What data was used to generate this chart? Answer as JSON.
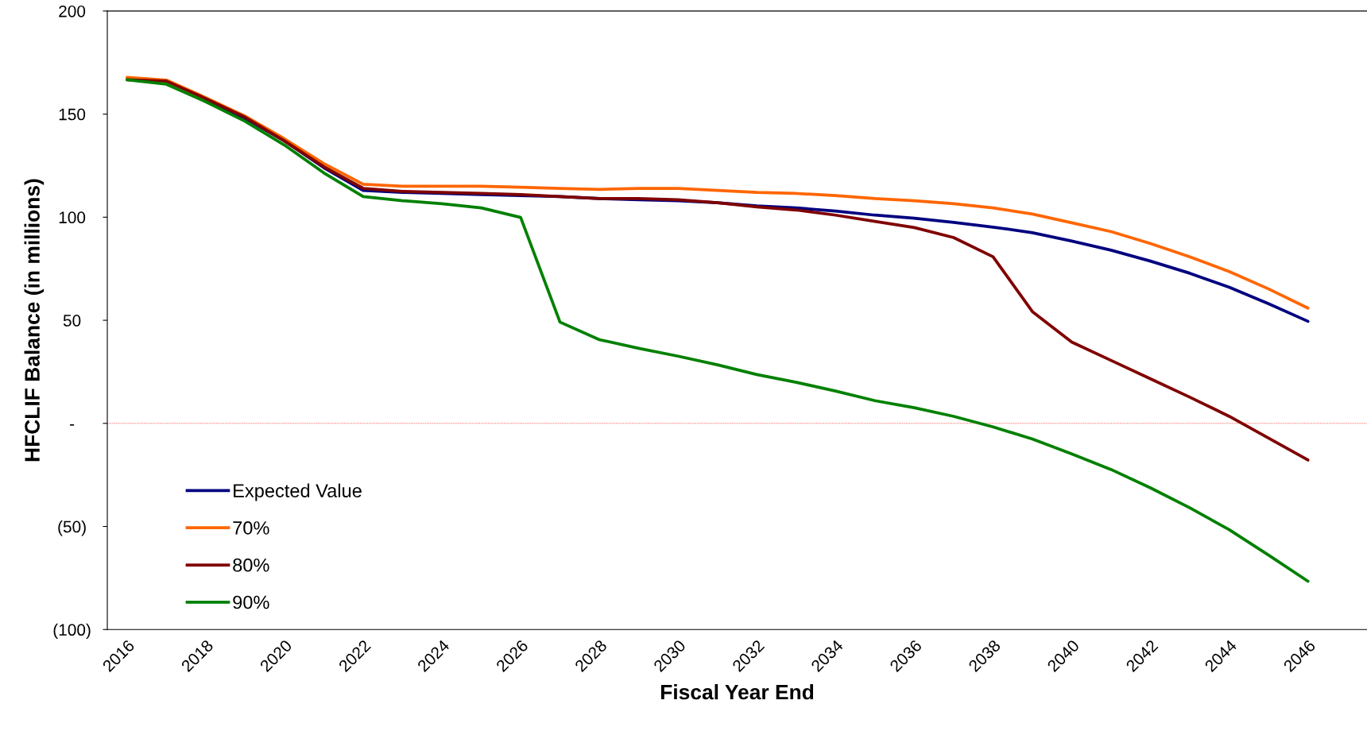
{
  "chart_data": {
    "type": "line",
    "xlabel": "Fiscal Year End",
    "ylabel": "HFCLIF Balance (in millions)",
    "x": [
      2016,
      2017,
      2018,
      2019,
      2020,
      2021,
      2022,
      2023,
      2024,
      2025,
      2026,
      2027,
      2028,
      2029,
      2030,
      2031,
      2032,
      2033,
      2034,
      2035,
      2036,
      2037,
      2038,
      2039,
      2040,
      2041,
      2042,
      2043,
      2044,
      2045,
      2046
    ],
    "series": [
      {
        "name": "Expected Value",
        "color": "#000080",
        "values": [
          null,
          null,
          157,
          148,
          137,
          124,
          113,
          112,
          111.5,
          111,
          110.5,
          110,
          109,
          108.5,
          108,
          107,
          105.5,
          104.5,
          103,
          101,
          99.5,
          97.5,
          95.2,
          92.5,
          88.4,
          84,
          78.7,
          72.8,
          66,
          58,
          49.5
        ]
      },
      {
        "name": "70%",
        "color": "#ff6600",
        "values": [
          167.8,
          166.5,
          158,
          149,
          138,
          126,
          116,
          115,
          115,
          115,
          114.5,
          114,
          113.5,
          114,
          114,
          113,
          112,
          111.5,
          110.5,
          109,
          108,
          106.5,
          104.5,
          101.5,
          97.3,
          93,
          87.2,
          80.8,
          73.6,
          65.2,
          55.9
        ]
      },
      {
        "name": "80%",
        "color": "#800000",
        "values": [
          166.7,
          166,
          157.5,
          148.5,
          137,
          124.5,
          114,
          112.5,
          112,
          111.5,
          111,
          110,
          109,
          109,
          108.5,
          107,
          105,
          103.5,
          101,
          98,
          95,
          90.1,
          80.8,
          54.2,
          39.4,
          30.5,
          21.6,
          12.7,
          3.4,
          -7.2,
          -17.8
        ]
      },
      {
        "name": "90%",
        "color": "#008000",
        "values": [
          166.7,
          164.5,
          156,
          146.5,
          135,
          121.5,
          110,
          108,
          106.5,
          104.5,
          99.9,
          49.1,
          40.6,
          36.4,
          32.6,
          28.4,
          23.7,
          19.9,
          15.7,
          11,
          7.6,
          3.4,
          -1.7,
          -7.6,
          -14.8,
          -22.4,
          -31.3,
          -41,
          -51.6,
          -63.9,
          -76.6
        ]
      }
    ],
    "xlim": [
      2015.5,
      2047.5
    ],
    "xticks": [
      2016,
      2018,
      2020,
      2022,
      2024,
      2026,
      2028,
      2030,
      2032,
      2034,
      2036,
      2038,
      2040,
      2042,
      2044,
      2046
    ],
    "ylim": [
      -100,
      200
    ],
    "yticks": [
      {
        "value": -100,
        "label": "(100)"
      },
      {
        "value": -50,
        "label": "(50)"
      },
      {
        "value": 0,
        "label": "-"
      },
      50,
      100,
      150,
      200
    ],
    "ref_lines": [
      {
        "axis": "y",
        "value": 0,
        "color": "#ff0000",
        "line_style": "dotted"
      }
    ],
    "grid": false,
    "legend": "bottom left",
    "marker": "none",
    "line_style": "solid"
  }
}
